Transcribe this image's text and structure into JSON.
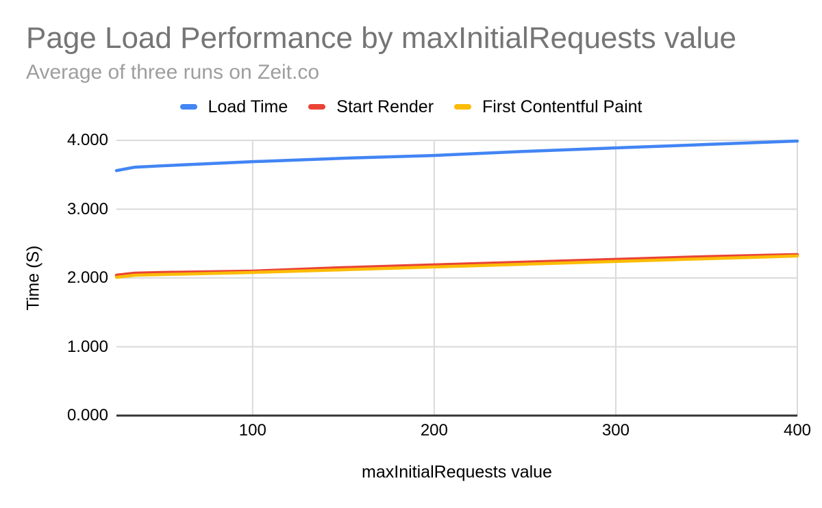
{
  "chart_data": {
    "type": "line",
    "title": "Page Load Performance by maxInitialRequests value",
    "subtitle": "Average of three runs on Zeit.co",
    "xlabel": "maxInitialRequests value",
    "ylabel": "Time (S)",
    "xlim": [
      25,
      400
    ],
    "ylim": [
      0,
      4
    ],
    "grid": true,
    "legend_position": "top",
    "x": [
      25,
      35,
      50,
      100,
      150,
      200,
      250,
      300,
      350,
      400
    ],
    "series": [
      {
        "name": "Load Time",
        "color": "#4285F4",
        "values": [
          3.56,
          3.61,
          3.63,
          3.69,
          3.74,
          3.78,
          3.84,
          3.89,
          3.94,
          3.99
        ]
      },
      {
        "name": "Start Render",
        "color": "#EA4335",
        "values": [
          2.04,
          2.07,
          2.08,
          2.1,
          2.15,
          2.19,
          2.23,
          2.27,
          2.31,
          2.34
        ]
      },
      {
        "name": "First Contentful Paint",
        "color": "#FBBC04",
        "values": [
          2.01,
          2.04,
          2.05,
          2.08,
          2.12,
          2.16,
          2.2,
          2.24,
          2.28,
          2.32
        ]
      }
    ],
    "xticks": [
      {
        "value": 100,
        "label": "100"
      },
      {
        "value": 200,
        "label": "200"
      },
      {
        "value": 300,
        "label": "300"
      },
      {
        "value": 400,
        "label": "400"
      }
    ],
    "yticks": [
      {
        "value": 0,
        "label": "0.000"
      },
      {
        "value": 1,
        "label": "1.000"
      },
      {
        "value": 2,
        "label": "2.000"
      },
      {
        "value": 3,
        "label": "3.000"
      },
      {
        "value": 4,
        "label": "4.000"
      }
    ],
    "colors": {
      "title_text": "#757575",
      "subtitle_text": "#9E9E9E",
      "tick_text": "#000000",
      "grid": "#DADADA",
      "axis_baseline": "#333333",
      "background": "#FFFFFF"
    }
  }
}
